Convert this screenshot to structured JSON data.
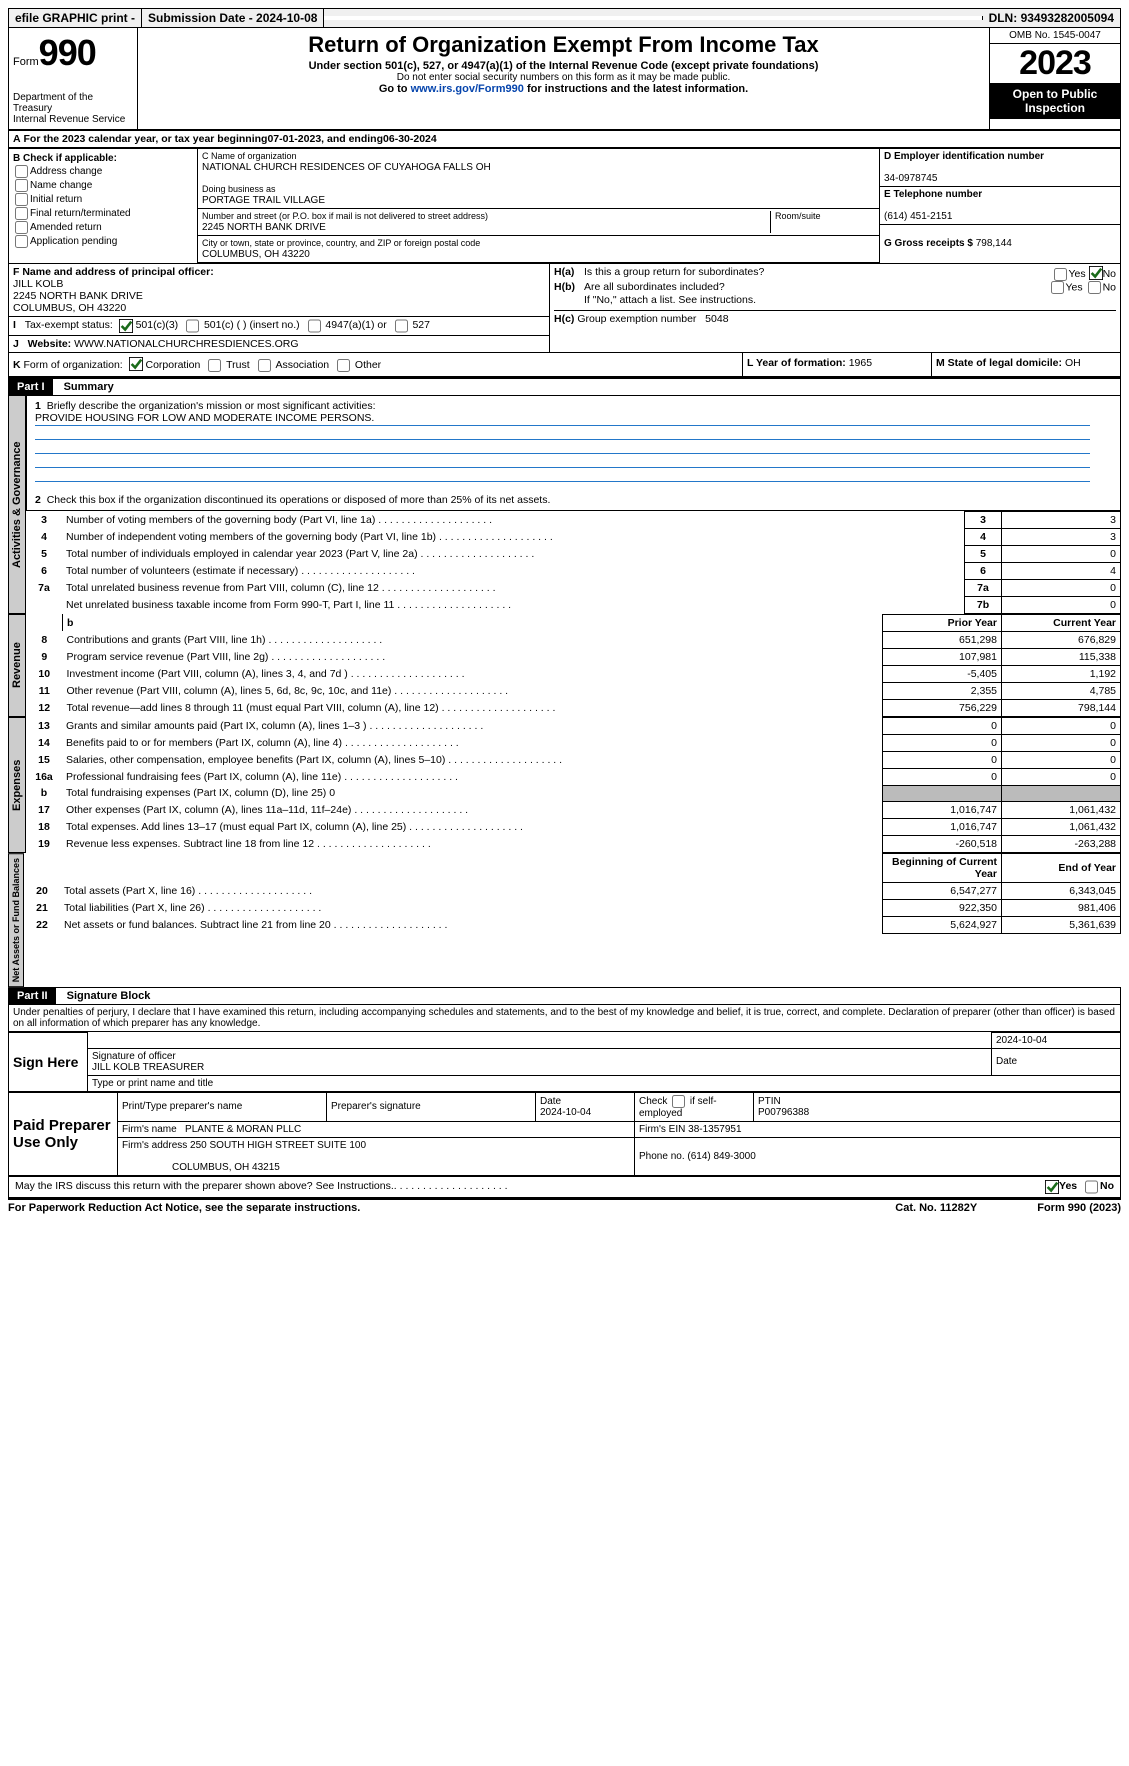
{
  "topbar": {
    "efile_label": "efile GRAPHIC print - ",
    "submission_label": "Submission Date - ",
    "submission_date": "2024-10-08",
    "dln_label": "DLN: ",
    "dln": "93493282005094"
  },
  "header": {
    "form_word": "Form",
    "form_number": "990",
    "dept": "Department of the Treasury",
    "irs": "Internal Revenue Service",
    "title": "Return of Organization Exempt From Income Tax",
    "subtitle": "Under section 501(c), 527, or 4947(a)(1) of the Internal Revenue Code (except private foundations)",
    "warn": "Do not enter social security numbers on this form as it may be made public.",
    "goto_pre": "Go to ",
    "goto_link": "www.irs.gov/Form990",
    "goto_post": " for instructions and the latest information.",
    "omb": "OMB No. 1545-0047",
    "year": "2023",
    "open_public": "Open to Public Inspection"
  },
  "lineA": {
    "text_pre": "For the 2023 calendar year, or tax year beginning ",
    "begin": "07-01-2023",
    "mid": " , and ending ",
    "end": "06-30-2024"
  },
  "boxB": {
    "header": "B Check if applicable:",
    "items": [
      "Address change",
      "Name change",
      "Initial return",
      "Final return/terminated",
      "Amended return",
      "Application pending"
    ]
  },
  "boxC": {
    "label_name": "C Name of organization",
    "org_name": "NATIONAL CHURCH RESIDENCES OF CUYAHOGA FALLS OH",
    "dba_label": "Doing business as",
    "dba": "PORTAGE TRAIL VILLAGE",
    "street_label": "Number and street (or P.O. box if mail is not delivered to street address)",
    "room_label": "Room/suite",
    "street": "2245 NORTH BANK DRIVE",
    "city_label": "City or town, state or province, country, and ZIP or foreign postal code",
    "city": "COLUMBUS, OH  43220"
  },
  "boxD": {
    "label": "D Employer identification number",
    "value": "34-0978745"
  },
  "boxE": {
    "label": "E Telephone number",
    "value": "(614) 451-2151"
  },
  "boxG": {
    "label": "G Gross receipts $",
    "value": "798,144"
  },
  "boxF": {
    "label": "F  Name and address of principal officer:",
    "name": "JILL KOLB",
    "addr1": "2245 NORTH BANK DRIVE",
    "addr2": "COLUMBUS, OH  43220"
  },
  "boxH": {
    "a_label": "Is this a group return for subordinates?",
    "b_label": "Are all subordinates included?",
    "b_note": "If \"No,\" attach a list. See instructions.",
    "c_label": "Group exemption number  ",
    "c_value": "5048"
  },
  "lineI": {
    "label": "Tax-exempt status:",
    "opts": [
      "501(c)(3)",
      "501(c) (  ) (insert no.)",
      "4947(a)(1) or",
      "527"
    ]
  },
  "lineJ": {
    "label": "Website:  ",
    "value": "WWW.NATIONALCHURCHRESDIENCES.ORG"
  },
  "lineK": {
    "label": "Form of organization:",
    "opts": [
      "Corporation",
      "Trust",
      "Association",
      "Other"
    ]
  },
  "lineL": {
    "label": "L Year of formation: ",
    "value": "1965"
  },
  "lineM": {
    "label": "M State of legal domicile: ",
    "value": "OH"
  },
  "part1": {
    "hdr": "Part I",
    "title": "Summary",
    "line1_label": "Briefly describe the organization's mission or most significant activities:",
    "line1_value": "PROVIDE HOUSING FOR LOW AND MODERATE INCOME PERSONS.",
    "line2": "Check this box         if the organization discontinued its operations or disposed of more than 25% of its net assets.",
    "gov_rows": [
      {
        "n": "3",
        "d": "Number of voting members of the governing body (Part VI, line 1a)",
        "box": "3",
        "v": "3"
      },
      {
        "n": "4",
        "d": "Number of independent voting members of the governing body (Part VI, line 1b)",
        "box": "4",
        "v": "3"
      },
      {
        "n": "5",
        "d": "Total number of individuals employed in calendar year 2023 (Part V, line 2a)",
        "box": "5",
        "v": "0"
      },
      {
        "n": "6",
        "d": "Total number of volunteers (estimate if necessary)",
        "box": "6",
        "v": "4"
      },
      {
        "n": "7a",
        "d": "Total unrelated business revenue from Part VIII, column (C), line 12",
        "box": "7a",
        "v": "0"
      },
      {
        "n": "",
        "d": "Net unrelated business taxable income from Form 990-T, Part I, line 11",
        "box": "7b",
        "v": "0"
      }
    ],
    "col_prior": "Prior Year",
    "col_current": "Current Year",
    "rev_rows": [
      {
        "n": "8",
        "d": "Contributions and grants (Part VIII, line 1h)",
        "p": "651,298",
        "c": "676,829"
      },
      {
        "n": "9",
        "d": "Program service revenue (Part VIII, line 2g)",
        "p": "107,981",
        "c": "115,338"
      },
      {
        "n": "10",
        "d": "Investment income (Part VIII, column (A), lines 3, 4, and 7d )",
        "p": "-5,405",
        "c": "1,192"
      },
      {
        "n": "11",
        "d": "Other revenue (Part VIII, column (A), lines 5, 6d, 8c, 9c, 10c, and 11e)",
        "p": "2,355",
        "c": "4,785"
      },
      {
        "n": "12",
        "d": "Total revenue—add lines 8 through 11 (must equal Part VIII, column (A), line 12)",
        "p": "756,229",
        "c": "798,144"
      }
    ],
    "exp_rows": [
      {
        "n": "13",
        "d": "Grants and similar amounts paid (Part IX, column (A), lines 1–3 )",
        "p": "0",
        "c": "0"
      },
      {
        "n": "14",
        "d": "Benefits paid to or for members (Part IX, column (A), line 4)",
        "p": "0",
        "c": "0"
      },
      {
        "n": "15",
        "d": "Salaries, other compensation, employee benefits (Part IX, column (A), lines 5–10)",
        "p": "0",
        "c": "0"
      },
      {
        "n": "16a",
        "d": "Professional fundraising fees (Part IX, column (A), line 11e)",
        "p": "0",
        "c": "0"
      },
      {
        "n": "b",
        "d": "Total fundraising expenses (Part IX, column (D), line 25) 0",
        "p": "",
        "c": "",
        "shade": true,
        "small": true
      },
      {
        "n": "17",
        "d": "Other expenses (Part IX, column (A), lines 11a–11d, 11f–24e)",
        "p": "1,016,747",
        "c": "1,061,432"
      },
      {
        "n": "18",
        "d": "Total expenses. Add lines 13–17 (must equal Part IX, column (A), line 25)",
        "p": "1,016,747",
        "c": "1,061,432"
      },
      {
        "n": "19",
        "d": "Revenue less expenses. Subtract line 18 from line 12",
        "p": "-260,518",
        "c": "-263,288"
      }
    ],
    "col_begin": "Beginning of Current Year",
    "col_end": "End of Year",
    "net_rows": [
      {
        "n": "20",
        "d": "Total assets (Part X, line 16)",
        "p": "6,547,277",
        "c": "6,343,045"
      },
      {
        "n": "21",
        "d": "Total liabilities (Part X, line 26)",
        "p": "922,350",
        "c": "981,406"
      },
      {
        "n": "22",
        "d": "Net assets or fund balances. Subtract line 21 from line 20",
        "p": "5,624,927",
        "c": "5,361,639"
      }
    ],
    "side_gov": "Activities & Governance",
    "side_rev": "Revenue",
    "side_exp": "Expenses",
    "side_net": "Net Assets or Fund Balances"
  },
  "part2": {
    "hdr": "Part II",
    "title": "Signature Block",
    "perjury": "Under penalties of perjury, I declare that I have examined this return, including accompanying schedules and statements, and to the best of my knowledge and belief, it is true, correct, and complete. Declaration of preparer (other than officer) is based on all information of which preparer has any knowledge."
  },
  "sign": {
    "here": "Sign Here",
    "date": "2024-10-04",
    "sig_label": "Signature of officer",
    "date_label": "Date",
    "name": "JILL KOLB  TREASURER",
    "name_label": "Type or print name and title"
  },
  "preparer": {
    "label": "Paid Preparer Use Only",
    "h_name": "Print/Type preparer's name",
    "h_sig": "Preparer's signature",
    "h_date": "Date",
    "date": "2024-10-04",
    "h_check": "Check         if self-employed",
    "h_ptin": "PTIN",
    "ptin": "P00796388",
    "firm_label": "Firm's name   ",
    "firm": "PLANTE & MORAN PLLC",
    "ein_label": "Firm's EIN  ",
    "ein": "38-1357951",
    "addr_label": "Firm's address ",
    "addr1": "250 SOUTH HIGH STREET SUITE 100",
    "addr2": "COLUMBUS, OH  43215",
    "phone_label": "Phone no. ",
    "phone": "(614) 849-3000"
  },
  "discuss": "May the IRS discuss this return with the preparer shown above? See Instructions.",
  "footer": {
    "paperwork": "For Paperwork Reduction Act Notice, see the separate instructions.",
    "cat": "Cat. No. 11282Y",
    "form": "Form 990 (2023)"
  },
  "colors": {
    "accent": "#2377c9"
  }
}
